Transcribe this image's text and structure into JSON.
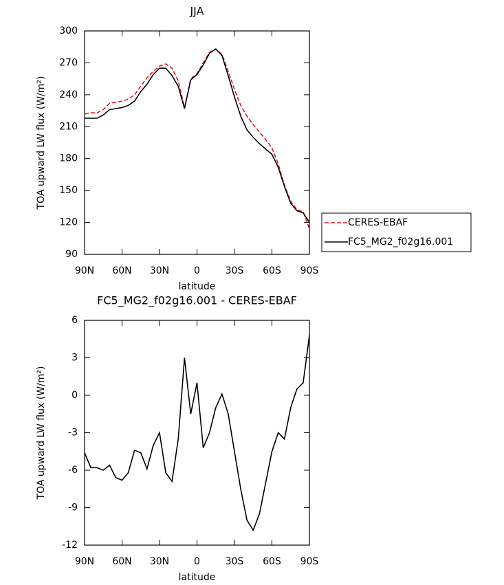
{
  "chart_data": [
    {
      "type": "line",
      "title": "JJA",
      "xlabel": "latitude",
      "ylabel": "TOA upward LW flux (W/m²)",
      "x": [
        90,
        85,
        80,
        75,
        70,
        65,
        60,
        55,
        50,
        45,
        40,
        35,
        30,
        25,
        20,
        15,
        10,
        5,
        0,
        -5,
        -10,
        -15,
        -20,
        -25,
        -30,
        -35,
        -40,
        -45,
        -50,
        -55,
        -60,
        -65,
        -70,
        -75,
        -80,
        -85,
        -90
      ],
      "series": [
        {
          "name": "CERES-EBAF",
          "color": "#e8141c",
          "linestyle": "dashed",
          "values": [
            222,
            223,
            223,
            226,
            232,
            233,
            234,
            236,
            240,
            248,
            256,
            262,
            267,
            269,
            265,
            253,
            228,
            255,
            260,
            270,
            280,
            283,
            278,
            262,
            245,
            230,
            220,
            212,
            205,
            198,
            190,
            175,
            155,
            140,
            132,
            130,
            114
          ]
        },
        {
          "name": "FC5_MG2_f02g16.001",
          "color": "#000000",
          "linestyle": "solid",
          "values": [
            218,
            218,
            218,
            221,
            226,
            227,
            228,
            230,
            234,
            243,
            250,
            259,
            265,
            265,
            258,
            248,
            227,
            254,
            259,
            268,
            279,
            283,
            277,
            258,
            238,
            220,
            207,
            200,
            194,
            189,
            184,
            172,
            154,
            138,
            131,
            129,
            120
          ]
        }
      ],
      "xlim": [
        90,
        -90
      ],
      "xticks": [
        {
          "value": 90,
          "label": "90N"
        },
        {
          "value": 60,
          "label": "60N"
        },
        {
          "value": 30,
          "label": "30N"
        },
        0,
        {
          "value": -30,
          "label": "30S"
        },
        {
          "value": -60,
          "label": "60S"
        },
        {
          "value": -90,
          "label": "90S"
        }
      ],
      "ylim": [
        90,
        300
      ],
      "yticks": [
        90,
        120,
        150,
        180,
        210,
        240,
        270,
        300
      ],
      "legend": "right"
    },
    {
      "type": "line",
      "title": "FC5_MG2_f02g16.001 - CERES-EBAF",
      "xlabel": "latitude",
      "ylabel": "TOA upward LW flux (W/m²)",
      "x": [
        90,
        85,
        80,
        75,
        70,
        65,
        60,
        55,
        50,
        45,
        40,
        35,
        30,
        25,
        20,
        15,
        10,
        5,
        0,
        -5,
        -10,
        -15,
        -20,
        -25,
        -30,
        -35,
        -40,
        -45,
        -50,
        -55,
        -60,
        -65,
        -70,
        -75,
        -80,
        -85,
        -90
      ],
      "series": [
        {
          "color": "#000000",
          "linestyle": "solid",
          "values": [
            -4.6,
            -5.8,
            -5.8,
            -6.0,
            -5.6,
            -6.6,
            -6.8,
            -6.2,
            -4.4,
            -4.6,
            -5.9,
            -4.0,
            -3.0,
            -6.2,
            -6.9,
            -3.5,
            3.0,
            -1.5,
            1.0,
            -4.2,
            -3.0,
            -1.0,
            0.1,
            -1.5,
            -4.5,
            -7.5,
            -10,
            -10.8,
            -9.5,
            -7,
            -4.5,
            -3.0,
            -3.5,
            -1.0,
            0.5,
            1.0,
            4.8
          ]
        }
      ],
      "xlim": [
        90,
        -90
      ],
      "xticks": [
        {
          "value": 90,
          "label": "90N"
        },
        {
          "value": 60,
          "label": "60N"
        },
        {
          "value": 30,
          "label": "30N"
        },
        0,
        {
          "value": -30,
          "label": "30S"
        },
        {
          "value": -60,
          "label": "60S"
        },
        {
          "value": -90,
          "label": "90S"
        }
      ],
      "ylim": [
        -12,
        6
      ],
      "yticks": [
        -12,
        -9,
        -6,
        -3,
        0,
        3,
        6
      ]
    }
  ]
}
